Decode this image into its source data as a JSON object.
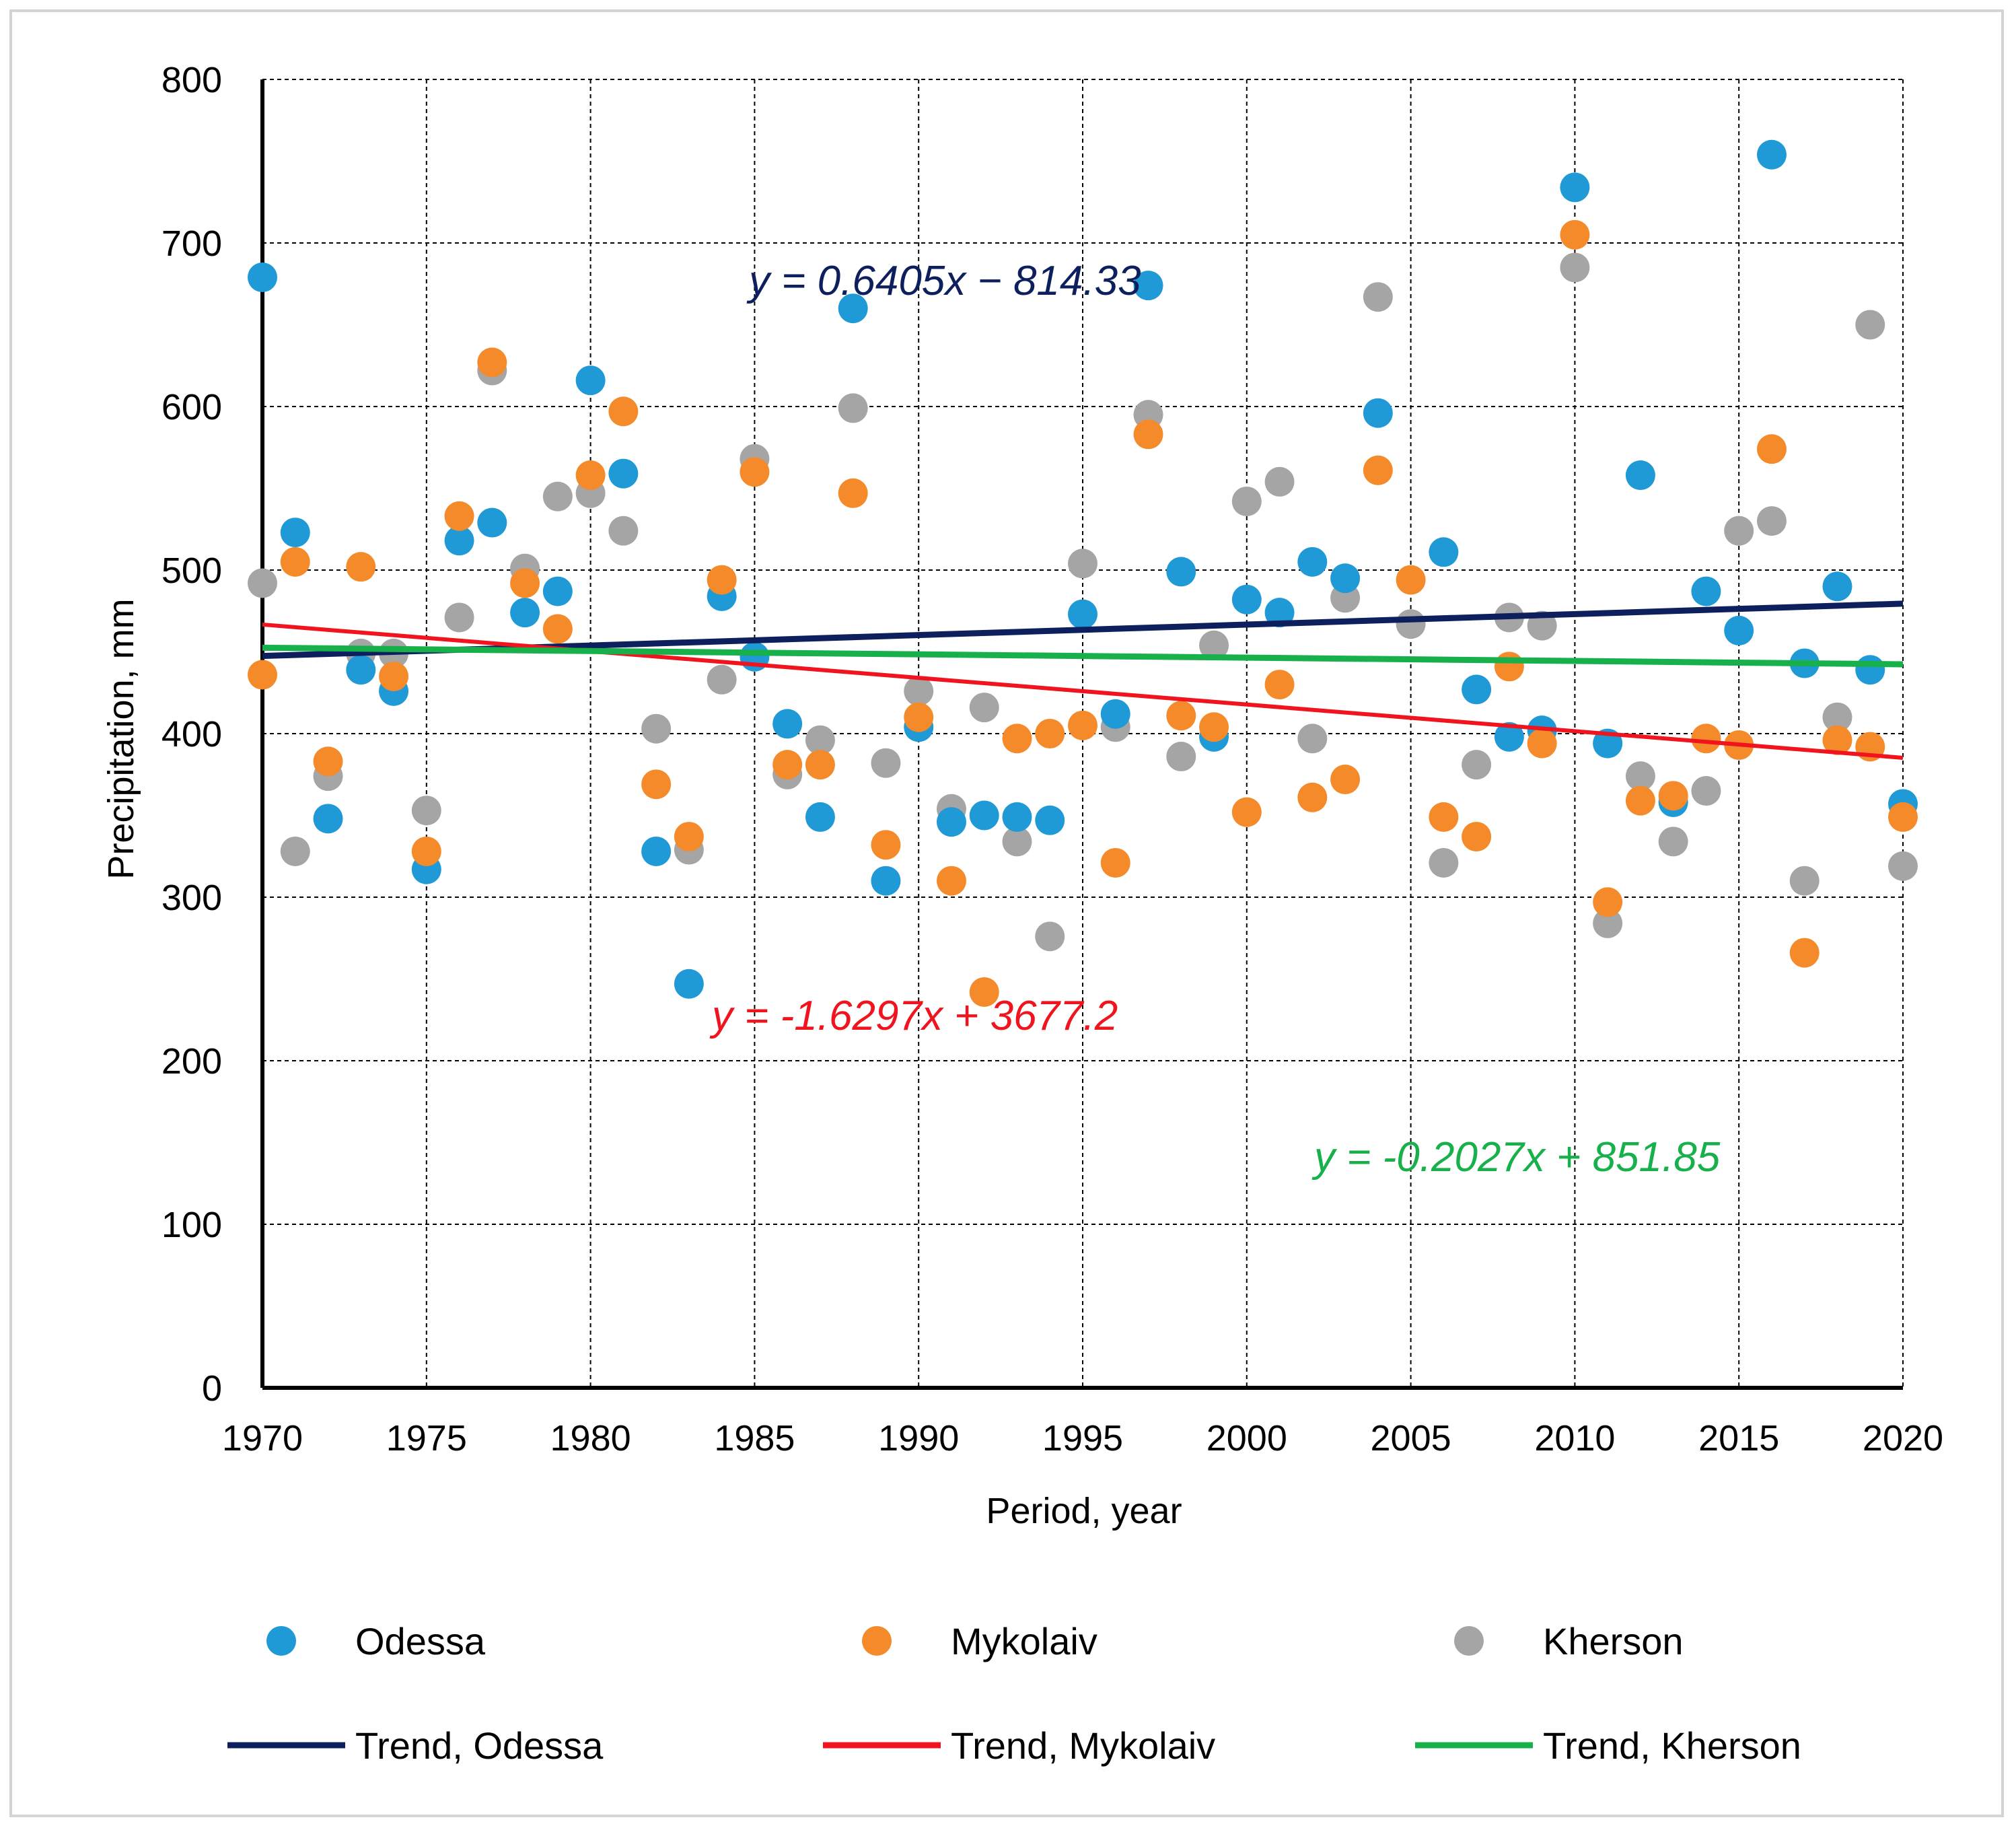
{
  "chart_data": {
    "type": "scatter",
    "xlabel": "Period, year",
    "ylabel": "Precipitation, mm",
    "xlim": [
      1970,
      2020
    ],
    "ylim": [
      0,
      800
    ],
    "x_ticks": [
      1970,
      1975,
      1980,
      1985,
      1990,
      1995,
      2000,
      2005,
      2010,
      2015,
      2020
    ],
    "y_ticks": [
      0,
      100,
      200,
      300,
      400,
      500,
      600,
      700,
      800
    ],
    "grid": true,
    "grid_style": "dashed",
    "legend_position": "bottom",
    "x": [
      1970,
      1971,
      1972,
      1973,
      1974,
      1975,
      1976,
      1977,
      1978,
      1979,
      1980,
      1981,
      1982,
      1983,
      1984,
      1985,
      1986,
      1987,
      1988,
      1989,
      1990,
      1991,
      1992,
      1993,
      1994,
      1995,
      1996,
      1997,
      1998,
      1999,
      2000,
      2001,
      2002,
      2003,
      2004,
      2005,
      2006,
      2007,
      2008,
      2009,
      2010,
      2011,
      2012,
      2013,
      2014,
      2015,
      2016,
      2017,
      2018,
      2019,
      2020
    ],
    "series": [
      {
        "name": "Odessa",
        "color": "#1f9ad6",
        "values": [
          679,
          523,
          348,
          439,
          426,
          317,
          518,
          529,
          474,
          487,
          616,
          559,
          328,
          247,
          484,
          447,
          406,
          349,
          660,
          310,
          404,
          346,
          350,
          349,
          347,
          473,
          412,
          674,
          499,
          398,
          482,
          474,
          505,
          495,
          596,
          null,
          511,
          427,
          398,
          402,
          734,
          394,
          558,
          358,
          487,
          463,
          754,
          443,
          490,
          439,
          357
        ]
      },
      {
        "name": "Mykolaiv",
        "color": "#f58a2a",
        "values": [
          436,
          505,
          383,
          502,
          435,
          328,
          533,
          627,
          492,
          464,
          558,
          597,
          369,
          337,
          494,
          560,
          381,
          381,
          547,
          332,
          410,
          310,
          242,
          397,
          400,
          405,
          321,
          583,
          411,
          404,
          352,
          430,
          361,
          372,
          561,
          494,
          349,
          337,
          441,
          394,
          705,
          297,
          359,
          362,
          397,
          393,
          574,
          266,
          396,
          392,
          349
        ]
      },
      {
        "name": "Kherson",
        "color": "#a5a5a5",
        "values": [
          492,
          328,
          374,
          449,
          449,
          353,
          471,
          622,
          501,
          545,
          547,
          524,
          403,
          329,
          433,
          568,
          375,
          396,
          599,
          382,
          426,
          354,
          416,
          334,
          276,
          504,
          404,
          595,
          386,
          454,
          542,
          554,
          397,
          483,
          667,
          467,
          321,
          381,
          471,
          466,
          685,
          284,
          374,
          334,
          365,
          524,
          530,
          310,
          410,
          650,
          319
        ]
      }
    ],
    "trends": [
      {
        "name": "Trend, Odessa",
        "color": "#0d1f5c",
        "slope": 0.6405,
        "intercept": -814.33,
        "equation": "y = 0.6405x − 814.33"
      },
      {
        "name": "Trend, Mykolaiv",
        "color": "#f0141e",
        "slope": -1.6297,
        "intercept": 3677.2,
        "equation": "y = -1.6297x + 3677.2"
      },
      {
        "name": "Trend, Kherson",
        "color": "#17b04a",
        "slope": -0.2027,
        "intercept": 851.85,
        "equation": "y = -0.2027x + 851.85"
      }
    ]
  }
}
